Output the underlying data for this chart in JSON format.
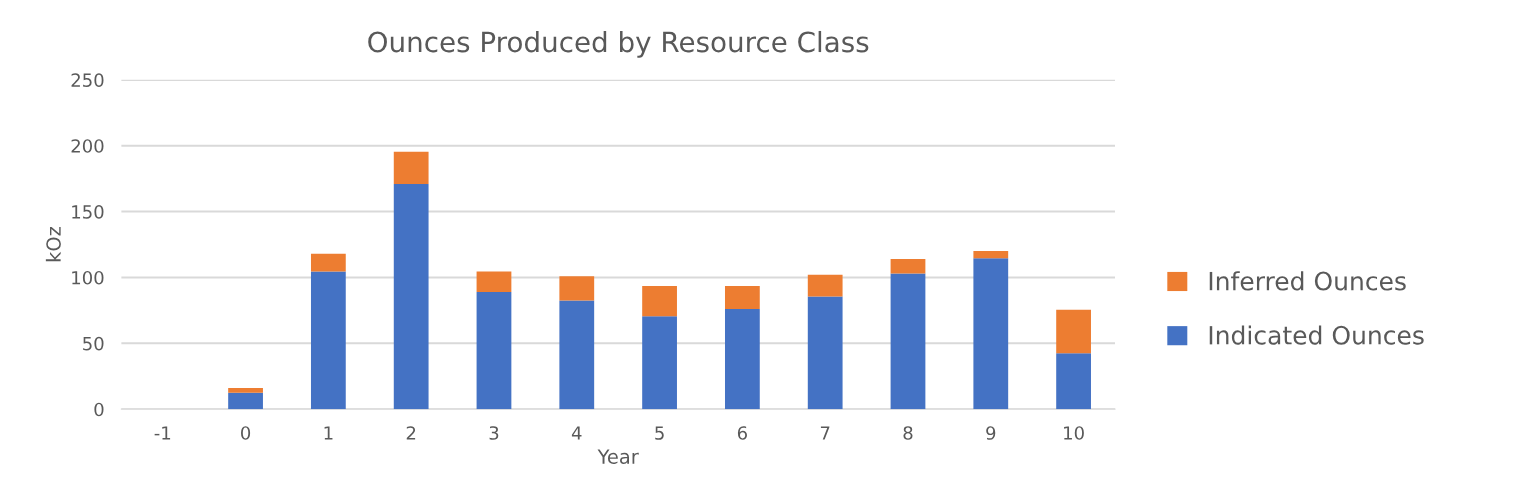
{
  "chart_data": {
    "type": "bar",
    "title": "Ounces Produced by Resource Class",
    "xlabel": "Year",
    "ylabel": "kOz",
    "categories": [
      "-1",
      "0",
      "1",
      "2",
      "3",
      "4",
      "5",
      "6",
      "7",
      "8",
      "9",
      "10"
    ],
    "series": [
      {
        "name": "Indicated Ounces",
        "color": "#4472c4",
        "values": [
          0,
          12.5,
          104.5,
          171,
          89,
          82.5,
          70.5,
          76,
          85.5,
          103,
          114.5,
          42.5
        ]
      },
      {
        "name": "Inferred Ounces",
        "color": "#ed7d31",
        "values": [
          0,
          3.5,
          13.5,
          24.5,
          15.5,
          18.5,
          23,
          17.5,
          16.5,
          11,
          5.5,
          33
        ]
      }
    ],
    "stacked": true,
    "ylim": [
      0,
      250
    ],
    "yticks": [
      0,
      50,
      100,
      150,
      200,
      250
    ],
    "grid": "y",
    "legend": "right"
  }
}
